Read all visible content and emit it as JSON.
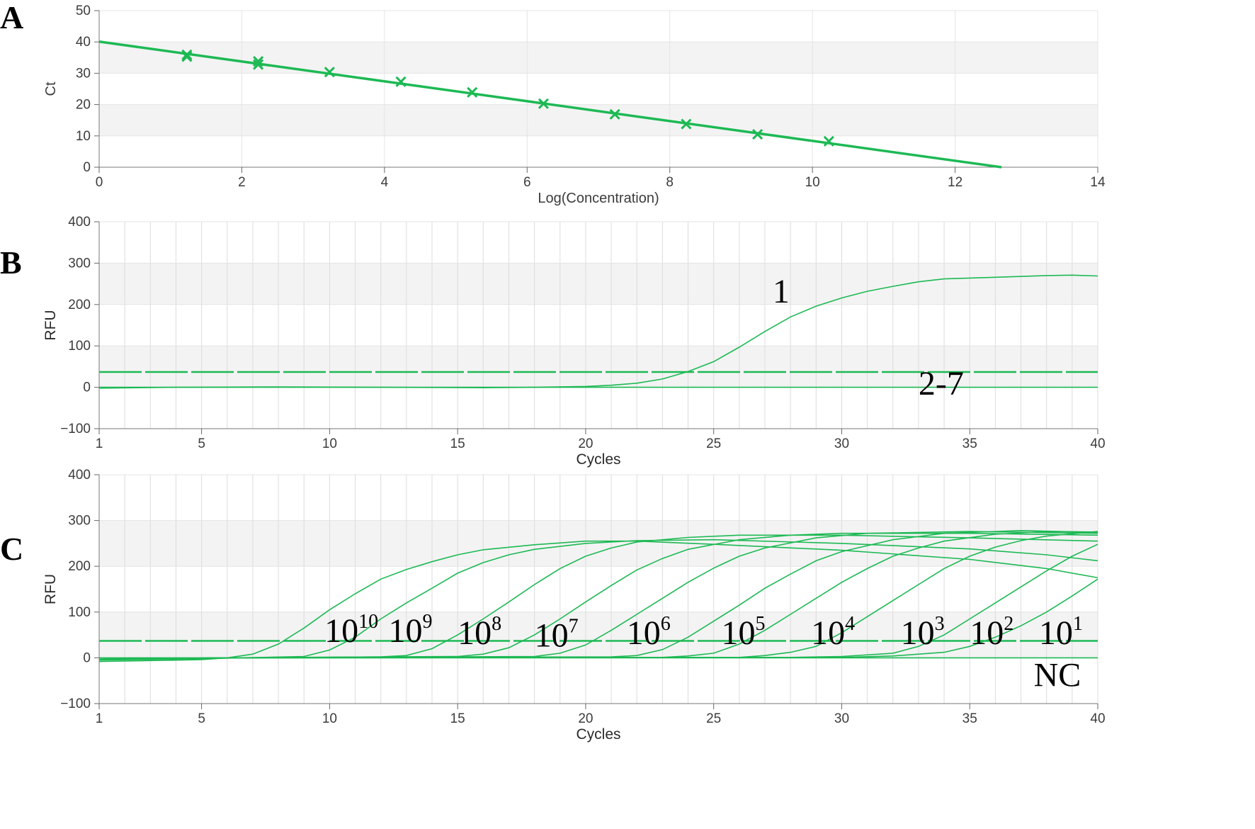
{
  "chart_data": [
    {
      "panel_label": "A",
      "type": "scatter",
      "xlabel": "Log(Concentration)",
      "ylabel": "Ct",
      "xlim": [
        0,
        14
      ],
      "ylim": [
        0,
        50
      ],
      "x_ticks": [
        0,
        2,
        4,
        6,
        8,
        10,
        12,
        14
      ],
      "y_ticks": [
        0,
        10,
        20,
        30,
        40,
        50
      ],
      "grid": true,
      "color": "#1db954",
      "points": [
        {
          "x": 1.23,
          "y": 35.9
        },
        {
          "x": 1.23,
          "y": 35.3
        },
        {
          "x": 2.23,
          "y": 33.8
        },
        {
          "x": 2.23,
          "y": 32.8
        },
        {
          "x": 3.23,
          "y": 30.4
        },
        {
          "x": 4.23,
          "y": 27.3
        },
        {
          "x": 5.23,
          "y": 23.9
        },
        {
          "x": 6.23,
          "y": 20.3
        },
        {
          "x": 7.23,
          "y": 16.9
        },
        {
          "x": 8.23,
          "y": 13.8
        },
        {
          "x": 9.23,
          "y": 10.5
        },
        {
          "x": 10.23,
          "y": 8.3
        }
      ],
      "fit_line": {
        "x": [
          0,
          12.65
        ],
        "y": [
          40.1,
          0
        ]
      }
    },
    {
      "panel_label": "B",
      "type": "line",
      "xlabel": "Cycles",
      "ylabel": "RFU",
      "xlim": [
        1,
        40
      ],
      "ylim": [
        -100,
        400
      ],
      "x_ticks": [
        1,
        5,
        10,
        15,
        20,
        25,
        30,
        35,
        40
      ],
      "y_ticks": [
        -100,
        0,
        100,
        200,
        300,
        400
      ],
      "grid": true,
      "color": "#1db954",
      "threshold": 37,
      "series": [
        {
          "label": "1",
          "x": [
            1,
            4,
            8,
            12,
            16,
            18,
            20,
            21,
            22,
            23,
            24,
            25,
            26,
            27,
            28,
            29,
            30,
            31,
            32,
            33,
            34,
            36,
            38,
            39,
            40
          ],
          "y": [
            -2,
            0,
            1,
            0,
            -1,
            0,
            2,
            5,
            10,
            20,
            38,
            62,
            97,
            135,
            170,
            196,
            216,
            232,
            244,
            255,
            262,
            266,
            270,
            271,
            269
          ]
        },
        {
          "label": "2-7",
          "x": [
            1,
            10,
            20,
            30,
            40
          ],
          "y": [
            0,
            0,
            0,
            0,
            0
          ]
        }
      ],
      "annotations": [
        {
          "text": "1",
          "x": 27.3,
          "y": 205
        },
        {
          "text": "2-7",
          "x": 33.0,
          "y": -18
        }
      ]
    },
    {
      "panel_label": "C",
      "type": "line",
      "xlabel": "Cycles",
      "ylabel": "RFU",
      "xlim": [
        1,
        40
      ],
      "ylim": [
        -100,
        400
      ],
      "x_ticks": [
        1,
        5,
        10,
        15,
        20,
        25,
        30,
        35,
        40
      ],
      "y_ticks": [
        -100,
        0,
        100,
        200,
        300,
        400
      ],
      "grid": true,
      "color": "#1db954",
      "threshold": 37,
      "series": [
        {
          "label": "10^10",
          "x": [
            1,
            3,
            5,
            6,
            7,
            8,
            9,
            10,
            11,
            12,
            13,
            14,
            15,
            16,
            18,
            20,
            22,
            25,
            30,
            35,
            38,
            40
          ],
          "y": [
            -8,
            -6,
            -4,
            0,
            8,
            30,
            65,
            105,
            140,
            172,
            193,
            210,
            225,
            236,
            247,
            255,
            255,
            248,
            235,
            215,
            195,
            175
          ]
        },
        {
          "label": "10^9",
          "x": [
            1,
            5,
            9,
            10,
            11,
            12,
            13,
            14,
            15,
            16,
            17,
            18,
            20,
            22,
            25,
            30,
            35,
            38,
            40
          ],
          "y": [
            -5,
            -2,
            3,
            17,
            45,
            85,
            120,
            152,
            185,
            208,
            225,
            237,
            250,
            256,
            258,
            250,
            238,
            225,
            212
          ]
        },
        {
          "label": "10^8",
          "x": [
            1,
            6,
            12,
            13,
            14,
            15,
            16,
            17,
            18,
            19,
            20,
            21,
            22,
            24,
            26,
            30,
            35,
            40
          ],
          "y": [
            -3,
            0,
            2,
            5,
            20,
            50,
            85,
            122,
            160,
            195,
            222,
            240,
            253,
            263,
            268,
            268,
            262,
            255
          ]
        },
        {
          "label": "10^7",
          "x": [
            1,
            6,
            15,
            16,
            17,
            18,
            19,
            20,
            21,
            22,
            23,
            24,
            26,
            28,
            30,
            35,
            40
          ],
          "y": [
            -4,
            0,
            3,
            8,
            22,
            50,
            85,
            122,
            158,
            192,
            217,
            237,
            258,
            268,
            272,
            272,
            268
          ]
        },
        {
          "label": "10^6",
          "x": [
            1,
            6,
            18,
            19,
            20,
            21,
            22,
            23,
            24,
            25,
            26,
            27,
            29,
            31,
            35,
            40
          ],
          "y": [
            -3,
            0,
            3,
            10,
            28,
            60,
            95,
            130,
            165,
            196,
            222,
            240,
            262,
            272,
            276,
            272
          ]
        },
        {
          "label": "10^5",
          "x": [
            1,
            6,
            21,
            22,
            23,
            24,
            25,
            26,
            27,
            28,
            29,
            30,
            32,
            34,
            37,
            40
          ],
          "y": [
            -3,
            0,
            2,
            5,
            18,
            45,
            80,
            115,
            152,
            183,
            212,
            232,
            258,
            272,
            278,
            274
          ]
        },
        {
          "label": "10^4",
          "x": [
            1,
            6,
            23,
            24,
            25,
            26,
            27,
            28,
            29,
            30,
            31,
            32,
            33,
            34,
            36,
            38,
            40
          ],
          "y": [
            -3,
            0,
            1,
            4,
            10,
            30,
            60,
            95,
            130,
            165,
            195,
            222,
            240,
            255,
            270,
            276,
            275
          ]
        },
        {
          "label": "10^3",
          "x": [
            1,
            6,
            26,
            27,
            28,
            29,
            30,
            31,
            32,
            33,
            34,
            35,
            36,
            37,
            38,
            40
          ],
          "y": [
            -3,
            0,
            1,
            5,
            12,
            25,
            55,
            90,
            125,
            160,
            195,
            222,
            242,
            256,
            266,
            276
          ]
        },
        {
          "label": "10^2",
          "x": [
            1,
            6,
            28,
            30,
            32,
            33,
            34,
            35,
            36,
            37,
            38,
            39,
            40
          ],
          "y": [
            -3,
            0,
            1,
            3,
            10,
            25,
            50,
            85,
            120,
            155,
            190,
            222,
            248
          ]
        },
        {
          "label": "10^1",
          "x": [
            1,
            6,
            30,
            32,
            34,
            35,
            36,
            37,
            38,
            39,
            40
          ],
          "y": [
            -3,
            0,
            1,
            4,
            12,
            25,
            45,
            70,
            100,
            135,
            172
          ]
        },
        {
          "label": "NC",
          "x": [
            1,
            10,
            20,
            30,
            40
          ],
          "y": [
            0,
            0,
            0,
            0,
            0
          ]
        }
      ],
      "annotations": [
        {
          "base": "10",
          "exp": "10",
          "x": 9.8,
          "y": 35
        },
        {
          "base": "10",
          "exp": "9",
          "x": 12.3,
          "y": 35
        },
        {
          "base": "10",
          "exp": "8",
          "x": 15.0,
          "y": 30
        },
        {
          "base": "10",
          "exp": "7",
          "x": 18.0,
          "y": 25
        },
        {
          "base": "10",
          "exp": "6",
          "x": 21.6,
          "y": 30
        },
        {
          "base": "10",
          "exp": "5",
          "x": 25.3,
          "y": 30
        },
        {
          "base": "10",
          "exp": "4",
          "x": 28.8,
          "y": 30
        },
        {
          "base": "10",
          "exp": "3",
          "x": 32.3,
          "y": 30
        },
        {
          "base": "10",
          "exp": "2",
          "x": 35.0,
          "y": 30
        },
        {
          "base": "10",
          "exp": "1",
          "x": 37.7,
          "y": 30
        },
        {
          "base": "NC",
          "exp": "",
          "x": 37.5,
          "y": -62
        }
      ]
    }
  ]
}
